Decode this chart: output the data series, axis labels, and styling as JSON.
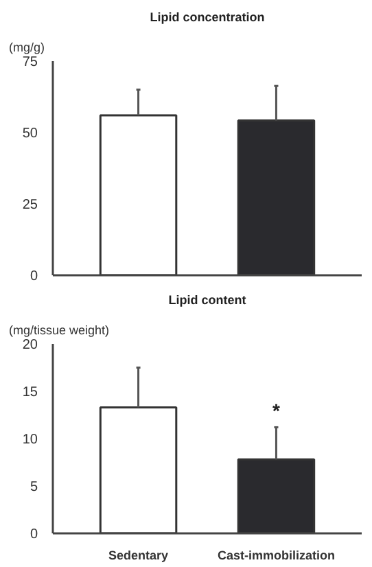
{
  "chart_data": [
    {
      "type": "bar",
      "title": "Lipid concentration",
      "ylabel": "(mg/g)",
      "categories": [
        null,
        null
      ],
      "values": [
        56,
        54.2
      ],
      "colors": [
        "#ffffff",
        "#2a2a2e"
      ],
      "errors": [
        [
          56,
          65
        ],
        [
          54.2,
          66.3
        ]
      ],
      "ylim": [
        0,
        75
      ],
      "yticks": [
        0,
        25,
        50,
        75
      ],
      "grid": false
    },
    {
      "type": "bar",
      "title": "Lipid content",
      "ylabel": "(mg/tissue weight)",
      "categories": [
        "Sedentary",
        "Cast-immobilization"
      ],
      "values": [
        13.3,
        7.8
      ],
      "colors": [
        "#ffffff",
        "#2a2a2e"
      ],
      "errors": [
        [
          13.3,
          17.5
        ],
        [
          7.8,
          11.2
        ]
      ],
      "ylim": [
        0,
        20
      ],
      "yticks": [
        0,
        5,
        10,
        15,
        20
      ],
      "grid": false,
      "annotations": [
        "*"
      ]
    }
  ]
}
